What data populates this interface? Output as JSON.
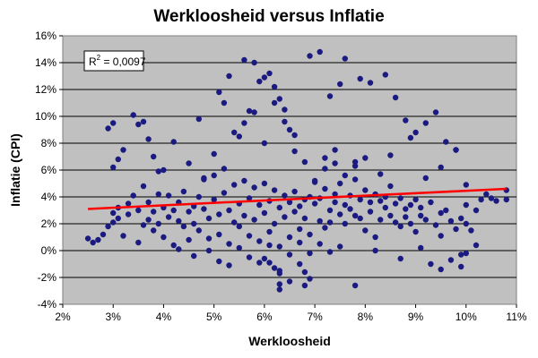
{
  "chart_data": {
    "type": "scatter",
    "title": "Werkloosheid versus Inflatie",
    "xlabel": "Werkloosheid",
    "ylabel": "Inflatie (CPI)",
    "xlim": [
      2,
      11
    ],
    "ylim": [
      -4,
      16
    ],
    "x_ticks": [
      "2%",
      "3%",
      "4%",
      "5%",
      "6%",
      "7%",
      "8%",
      "9%",
      "10%",
      "11%"
    ],
    "y_ticks": [
      "16%",
      "14%",
      "12%",
      "10%",
      "8%",
      "6%",
      "4%",
      "2%",
      "0%",
      "-2%",
      "-4%"
    ],
    "grid": "horizontal",
    "annotation": {
      "r2_base": "R",
      "r2_sup": "2",
      "r2_value": " = 0,0097"
    },
    "colors": {
      "points": "#1a1a80",
      "trendline": "#ff0000",
      "plot_bg": "#c0c0c0"
    },
    "trendline": {
      "x": [
        2.5,
        10.8
      ],
      "y": [
        3.1,
        4.6
      ]
    },
    "series": [
      {
        "x": [
          2.5,
          2.6,
          2.7,
          2.8,
          2.9,
          3.0,
          3.0,
          3.1,
          3.1,
          3.2,
          3.3,
          3.3,
          3.4,
          3.5,
          3.5,
          3.6,
          3.6,
          3.7,
          3.7,
          3.8,
          3.8,
          3.9,
          3.9,
          3.5,
          2.9,
          3.0,
          3.1,
          3.2,
          3.0,
          3.4,
          3.6,
          3.7,
          3.8,
          3.9,
          4.0,
          4.0,
          4.1,
          4.1,
          4.2,
          4.2,
          4.3,
          4.3,
          4.4,
          4.4,
          4.5,
          4.5,
          4.6,
          4.6,
          4.7,
          4.7,
          4.8,
          4.8,
          4.9,
          4.9,
          5.0,
          5.0,
          5.1,
          5.1,
          5.2,
          5.2,
          5.3,
          5.3,
          5.4,
          5.4,
          5.5,
          5.5,
          5.6,
          5.6,
          5.7,
          5.7,
          5.8,
          5.8,
          5.9,
          5.9,
          6.0,
          6.0,
          6.1,
          6.1,
          6.2,
          6.2,
          6.3,
          6.3,
          6.4,
          6.4,
          6.5,
          6.5,
          6.6,
          6.6,
          6.7,
          6.7,
          6.8,
          6.8,
          6.9,
          6.9,
          7.0,
          7.0,
          7.1,
          7.1,
          7.2,
          7.2,
          7.3,
          7.3,
          7.4,
          7.4,
          7.5,
          7.5,
          7.6,
          7.6,
          7.7,
          7.7,
          7.8,
          7.8,
          7.9,
          7.9,
          8.0,
          8.0,
          8.1,
          8.1,
          8.2,
          8.2,
          8.3,
          8.3,
          8.4,
          8.4,
          8.5,
          8.5,
          8.6,
          8.6,
          8.7,
          8.7,
          8.8,
          8.8,
          8.9,
          8.9,
          9.0,
          9.0,
          9.1,
          9.1,
          9.2,
          9.3,
          9.4,
          9.5,
          9.5,
          9.6,
          9.7,
          9.8,
          9.9,
          10.0,
          10.0,
          10.1,
          10.2,
          10.3,
          10.4,
          10.5,
          10.6,
          10.8,
          10.8,
          4.0,
          4.2,
          4.5,
          4.7,
          5.0,
          5.2,
          5.4,
          5.6,
          5.8,
          6.0,
          6.2,
          6.4,
          6.6,
          6.8,
          7.0,
          7.2,
          7.4,
          7.6,
          7.8,
          8.0,
          4.8,
          5.1,
          5.3,
          5.5,
          5.7,
          5.9,
          6.1,
          6.3,
          5.6,
          5.8,
          6.0,
          6.2,
          6.4,
          6.5,
          6.6,
          6.7,
          6.8,
          6.9,
          6.3,
          6.3,
          6.9,
          7.1,
          7.3,
          7.5,
          7.6,
          7.9,
          8.1,
          8.4,
          8.6,
          8.8,
          9.0,
          9.2,
          9.4,
          9.6,
          9.8,
          7.2,
          7.4,
          7.8,
          8.3,
          8.5,
          8.9,
          9.2,
          9.5,
          9.8,
          10.0,
          6.0,
          6.1,
          6.2,
          6.3,
          6.5,
          6.8,
          7.8,
          9.3,
          9.5,
          9.7,
          9.9,
          10.0,
          4.3,
          4.6,
          4.9,
          5.1,
          5.3,
          5.5,
          5.7,
          5.9,
          6.1,
          6.3,
          6.5,
          6.7,
          6.9,
          7.1,
          7.3,
          7.5,
          8.2,
          8.7,
          9.1,
          9.9,
          10.2
        ],
        "y": [
          0.9,
          0.6,
          0.8,
          1.2,
          1.8,
          2.1,
          2.8,
          3.2,
          2.4,
          1.1,
          2.7,
          3.5,
          4.1,
          3.0,
          0.6,
          4.8,
          1.9,
          2.3,
          3.6,
          1.5,
          2.9,
          4.2,
          2.0,
          9.4,
          9.1,
          9.5,
          6.8,
          7.5,
          6.2,
          10.1,
          9.6,
          8.3,
          7.0,
          5.9,
          3.2,
          1.0,
          2.5,
          4.1,
          3.0,
          0.4,
          2.2,
          3.6,
          1.8,
          4.4,
          2.9,
          0.8,
          3.3,
          2.0,
          4.0,
          1.5,
          3.1,
          5.3,
          2.4,
          0.9,
          3.8,
          5.6,
          2.7,
          1.2,
          4.3,
          6.1,
          3.0,
          0.5,
          2.1,
          4.9,
          3.5,
          1.8,
          5.2,
          2.6,
          3.9,
          1.1,
          4.7,
          2.3,
          3.4,
          0.7,
          5.0,
          2.8,
          3.7,
          1.4,
          4.5,
          2.0,
          3.2,
          0.3,
          4.1,
          2.5,
          3.6,
          1.0,
          2.9,
          4.4,
          3.3,
          1.6,
          3.8,
          2.4,
          4.0,
          1.2,
          3.5,
          5.1,
          2.2,
          3.9,
          1.7,
          4.6,
          3.0,
          2.1,
          4.2,
          3.6,
          2.7,
          5.0,
          3.4,
          2.0,
          4.1,
          3.1,
          2.6,
          5.3,
          3.8,
          2.4,
          4.5,
          1.5,
          3.6,
          2.9,
          4.2,
          1.0,
          3.7,
          2.3,
          4.0,
          3.2,
          2.6,
          4.8,
          3.5,
          2.1,
          3.9,
          1.8,
          3.1,
          2.5,
          3.4,
          2.0,
          3.8,
          1.4,
          3.2,
          2.6,
          2.3,
          3.6,
          1.9,
          2.8,
          1.1,
          3.0,
          2.2,
          1.6,
          2.4,
          3.4,
          2.0,
          1.5,
          3.0,
          3.8,
          4.2,
          3.9,
          3.7,
          4.5,
          3.8,
          6.0,
          8.1,
          6.5,
          9.8,
          7.2,
          11.0,
          8.8,
          9.5,
          10.3,
          8.0,
          12.2,
          9.6,
          7.4,
          6.6,
          5.2,
          6.1,
          7.5,
          5.6,
          6.3,
          6.9,
          5.4,
          11.8,
          13.0,
          8.5,
          10.4,
          12.6,
          13.2,
          11.3,
          14.2,
          14.0,
          12.9,
          11.0,
          10.5,
          9.0,
          8.6,
          -1.0,
          -1.6,
          -2.1,
          -2.5,
          -2.9,
          14.5,
          14.8,
          11.5,
          12.4,
          14.3,
          12.8,
          12.5,
          13.1,
          11.4,
          9.7,
          8.8,
          9.5,
          10.3,
          8.1,
          7.5,
          6.9,
          6.5,
          6.6,
          5.7,
          7.1,
          8.4,
          5.4,
          6.2,
          7.5,
          4.9,
          -0.6,
          -0.9,
          -1.3,
          -1.7,
          -2.3,
          -2.6,
          -2.6,
          -1.0,
          -1.4,
          -0.7,
          -1.2,
          -0.2,
          0.1,
          -0.4,
          0.0,
          -0.8,
          -1.1,
          0.2,
          -0.5,
          -0.9,
          0.4,
          -1.5,
          -0.3,
          0.6,
          -0.2,
          0.5,
          -0.1,
          0.3,
          0.0,
          -0.6,
          0.2,
          -0.3,
          0.4
        ]
      }
    ]
  }
}
